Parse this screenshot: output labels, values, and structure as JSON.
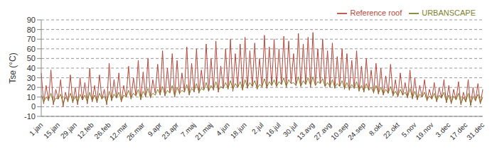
{
  "chart_data": {
    "type": "line",
    "y_label": "Tse (°C)",
    "categories": [
      "1.jan",
      null,
      null,
      null,
      null,
      null,
      null,
      "15.jan",
      null,
      null,
      null,
      null,
      null,
      null,
      "29.jan",
      null,
      null,
      null,
      null,
      null,
      null,
      "12.feb",
      null,
      null,
      null,
      null,
      null,
      null,
      "26.feb",
      null,
      null,
      null,
      null,
      null,
      null,
      "12.mar",
      null,
      null,
      null,
      null,
      null,
      null,
      "26.mar",
      null,
      null,
      null,
      null,
      null,
      null,
      "9.apr",
      null,
      null,
      null,
      null,
      null,
      null,
      "23.apr",
      null,
      null,
      null,
      null,
      null,
      null,
      "7.maj",
      null,
      null,
      null,
      null,
      null,
      null,
      "21.maj",
      null,
      null,
      null,
      null,
      null,
      null,
      "4.jun",
      null,
      null,
      null,
      null,
      null,
      null,
      "18.jun",
      null,
      null,
      null,
      null,
      null,
      null,
      "2.jul",
      null,
      null,
      null,
      null,
      null,
      null,
      "16.jul",
      null,
      null,
      null,
      null,
      null,
      null,
      "30.jul",
      null,
      null,
      null,
      null,
      null,
      null,
      "13.avg",
      null,
      null,
      null,
      null,
      null,
      null,
      "27.avg",
      null,
      null,
      null,
      null,
      null,
      null,
      "10.sep",
      null,
      null,
      null,
      null,
      null,
      null,
      "24.sep",
      null,
      null,
      null,
      null,
      null,
      null,
      "8.okt",
      null,
      null,
      null,
      null,
      null,
      null,
      "22.okt",
      null,
      null,
      null,
      null,
      null,
      null,
      "5.nov",
      null,
      null,
      null,
      null,
      null,
      null,
      "19.nov",
      null,
      null,
      null,
      null,
      null,
      null,
      "3.dec",
      null,
      null,
      null,
      null,
      null,
      null,
      "17.dec",
      null,
      null,
      null,
      null,
      null,
      null,
      "31.dec"
    ],
    "series": [
      {
        "name": "Reference roof",
        "color": "#b5473a",
        "values": [
          35,
          3,
          22,
          6,
          38,
          2,
          18,
          8,
          28,
          0,
          15,
          5,
          33,
          4,
          20,
          2,
          30,
          7,
          25,
          3,
          40,
          5,
          22,
          4,
          33,
          8,
          18,
          2,
          45,
          6,
          28,
          9,
          35,
          5,
          22,
          10,
          42,
          8,
          30,
          12,
          48,
          7,
          36,
          10,
          50,
          9,
          28,
          14,
          44,
          12,
          58,
          11,
          40,
          15,
          55,
          10,
          48,
          13,
          35,
          16,
          62,
          12,
          45,
          15,
          60,
          14,
          38,
          18,
          65,
          16,
          50,
          17,
          68,
          15,
          42,
          19,
          60,
          18,
          70,
          16,
          55,
          20,
          65,
          17,
          72,
          19,
          58,
          21,
          66,
          18,
          50,
          20,
          74,
          19,
          62,
          22,
          70,
          21,
          60,
          23,
          73,
          20,
          68,
          24,
          55,
          22,
          76,
          21,
          65,
          23,
          72,
          20,
          77,
          22,
          60,
          24,
          70,
          21,
          58,
          20,
          66,
          19,
          52,
          21,
          60,
          18,
          55,
          17,
          48,
          19,
          58,
          16,
          42,
          15,
          50,
          17,
          38,
          14,
          45,
          13,
          40,
          12,
          32,
          14,
          44,
          11,
          28,
          10,
          35,
          12,
          25,
          9,
          38,
          8,
          30,
          7,
          22,
          10,
          28,
          6,
          18,
          8,
          25,
          5,
          20,
          9,
          28,
          4,
          22,
          3,
          18,
          7,
          26,
          2,
          15,
          5,
          28,
          1,
          20,
          6,
          24,
          3,
          18
        ]
      },
      {
        "name": "URBANSCAPE",
        "color": "#7d7f2a",
        "values": [
          12,
          5,
          10,
          7,
          14,
          4,
          9,
          8,
          13,
          3,
          10,
          6,
          14,
          5,
          11,
          4,
          13,
          7,
          12,
          5,
          15,
          6,
          12,
          5,
          14,
          8,
          11,
          4,
          16,
          7,
          13,
          9,
          15,
          6,
          12,
          10,
          17,
          9,
          14,
          11,
          18,
          8,
          16,
          11,
          19,
          10,
          14,
          12,
          18,
          13,
          21,
          12,
          17,
          14,
          22,
          11,
          20,
          14,
          17,
          15,
          23,
          13,
          19,
          16,
          24,
          15,
          19,
          17,
          25,
          16,
          22,
          18,
          26,
          17,
          21,
          19,
          25,
          19,
          27,
          18,
          24,
          20,
          26,
          18,
          28,
          20,
          25,
          21,
          27,
          19,
          23,
          21,
          29,
          20,
          26,
          22,
          28,
          21,
          26,
          23,
          30,
          21,
          28,
          24,
          25,
          22,
          31,
          21,
          27,
          23,
          30,
          22,
          31,
          22,
          26,
          24,
          29,
          21,
          25,
          21,
          28,
          20,
          24,
          21,
          27,
          19,
          25,
          18,
          23,
          19,
          26,
          17,
          22,
          16,
          24,
          17,
          20,
          15,
          22,
          14,
          20,
          13,
          18,
          14,
          21,
          12,
          16,
          11,
          18,
          12,
          15,
          10,
          19,
          9,
          16,
          8,
          13,
          10,
          15,
          7,
          11,
          8,
          14,
          6,
          12,
          9,
          15,
          5,
          12,
          4,
          11,
          7,
          14,
          3,
          10,
          5,
          14,
          2,
          11,
          6,
          13,
          4,
          10
        ]
      }
    ],
    "ylim": [
      -10,
      90
    ],
    "yticks": [
      -10,
      0,
      10,
      20,
      30,
      40,
      50,
      60,
      70,
      80,
      90
    ],
    "grid": true,
    "legend": "upper right"
  }
}
